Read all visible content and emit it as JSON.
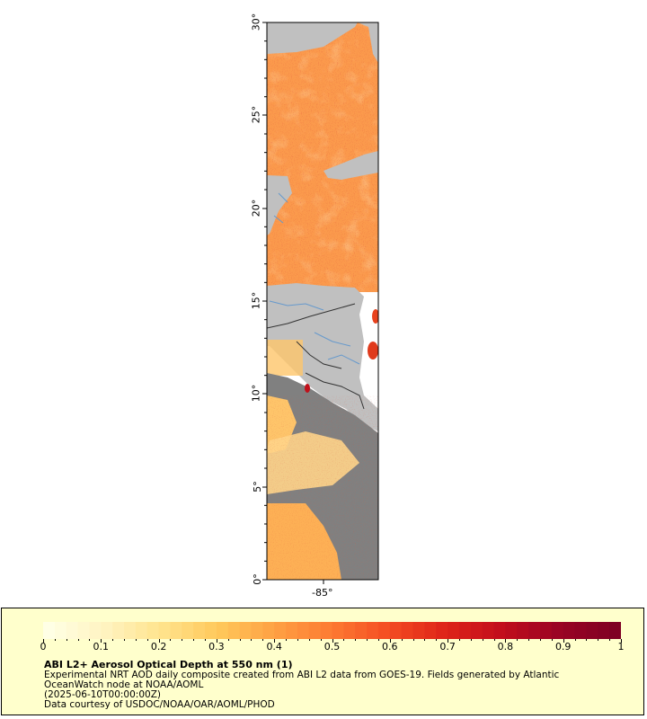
{
  "map": {
    "lat_labels": [
      "30°",
      "25°",
      "20°",
      "15°",
      "10°",
      "5°",
      "0°"
    ],
    "lon_labels": [
      "-85°"
    ],
    "colors": {
      "land": "#c0c0c0",
      "no_data": "#808080",
      "coast": "#222222",
      "rivers": "#6699cc",
      "borders": "#555555"
    }
  },
  "legend": {
    "colorbar_ticks": [
      "0",
      "0.1",
      "0.2",
      "0.3",
      "0.4",
      "0.5",
      "0.6",
      "0.7",
      "0.8",
      "0.9",
      "1"
    ],
    "colorbar_colors": [
      "#ffffe5",
      "#fff3c0",
      "#ffe38c",
      "#ffc85a",
      "#fea043",
      "#fd7a32",
      "#f44c22",
      "#de2419",
      "#c20d1c",
      "#9a0424",
      "#7f0024"
    ],
    "title": "ABI L2+ Aerosol Optical Depth at 550 nm (1)",
    "line1": "Experimental NRT AOD daily composite created from ABI L2 data from GOES-19. Fields generated by Atlantic",
    "line2": "OceanWatch node at NOAA/AOML",
    "line3": "(2025-06-10T00:00:00Z)",
    "line4": "Data courtesy of USDOC/NOAA/OAR/AOML/PHOD"
  }
}
